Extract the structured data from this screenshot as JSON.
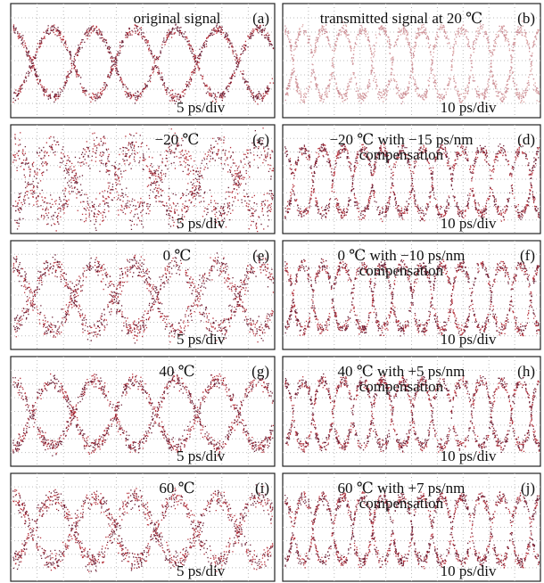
{
  "panels": [
    {
      "title": [
        "original signal"
      ],
      "label": "(a)",
      "scale": "5 ps/div"
    },
    {
      "title": [
        "transmitted signal at 20 ℃"
      ],
      "label": "(b)",
      "scale": "10 ps/div"
    },
    {
      "title": [
        "−20 ℃"
      ],
      "label": "(c)",
      "scale": "5 ps/div"
    },
    {
      "title": [
        "−20 ℃  with −15 ps/nm",
        "compensation"
      ],
      "label": "(d)",
      "scale": "10 ps/div"
    },
    {
      "title": [
        "0 ℃"
      ],
      "label": "(e)",
      "scale": "5 ps/div"
    },
    {
      "title": [
        "0 ℃  with −10 ps/nm",
        "compensation"
      ],
      "label": "(f)",
      "scale": "10 ps/div"
    },
    {
      "title": [
        "40 ℃"
      ],
      "label": "(g)",
      "scale": "5 ps/div"
    },
    {
      "title": [
        "40 ℃  with +5 ps/nm",
        "compensation"
      ],
      "label": "(h)",
      "scale": "10 ps/div"
    },
    {
      "title": [
        "60 ℃"
      ],
      "label": "(i)",
      "scale": "5 ps/div"
    },
    {
      "title": [
        "60 ℃  with +7 ps/nm",
        "compensation"
      ],
      "label": "(j)",
      "scale": "10 ps/div"
    }
  ]
}
